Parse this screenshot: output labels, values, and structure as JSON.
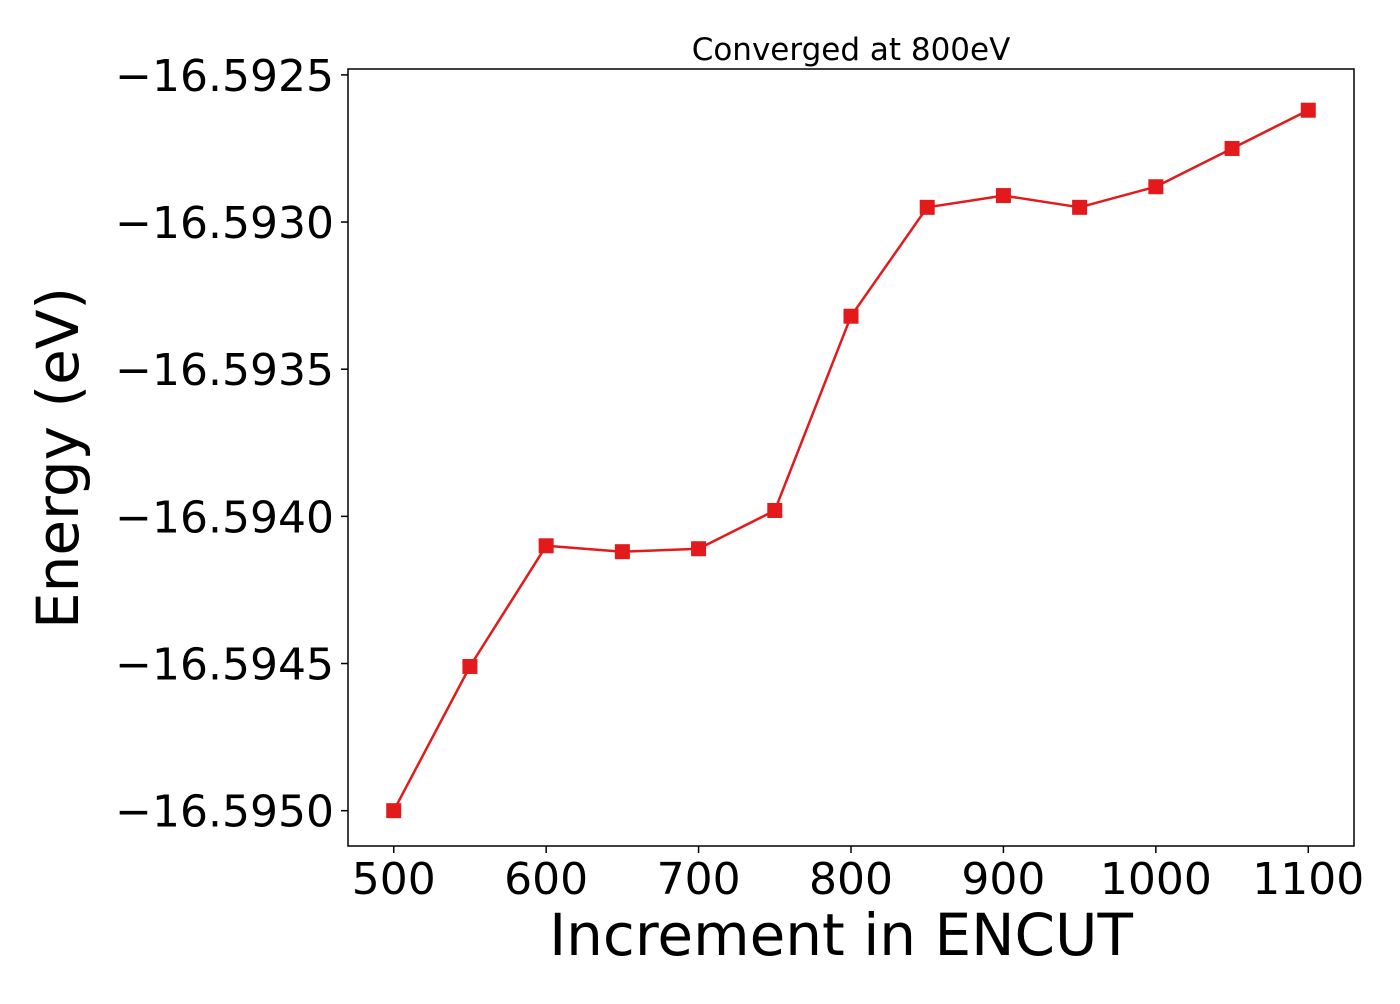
{
  "chart_data": {
    "type": "line",
    "title": "Converged at 800eV",
    "xlabel": "Increment in ENCUT",
    "ylabel": "Energy (eV)",
    "xlim": [
      470,
      1130
    ],
    "ylim": [
      -16.59512,
      -16.59248
    ],
    "x_ticks": [
      500,
      600,
      700,
      800,
      900,
      1000,
      1100
    ],
    "x_tick_labels": [
      "500",
      "600",
      "700",
      "800",
      "900",
      "1000",
      "1100"
    ],
    "y_ticks": [
      -16.595,
      -16.5945,
      -16.594,
      -16.5935,
      -16.593,
      -16.5925
    ],
    "y_tick_labels": [
      "−16.5950",
      "−16.5945",
      "−16.5940",
      "−16.5935",
      "−16.5930",
      "−16.5925"
    ],
    "grid": false,
    "series": [
      {
        "color": "#e31a1c",
        "marker": "square",
        "x": [
          500,
          550,
          600,
          650,
          700,
          750,
          800,
          850,
          900,
          950,
          1000,
          1050,
          1100
        ],
        "y": [
          -16.595,
          -16.59451,
          -16.5941,
          -16.59412,
          -16.59411,
          -16.59398,
          -16.59332,
          -16.59295,
          -16.59291,
          -16.59295,
          -16.59288,
          -16.59275,
          -16.59262
        ]
      }
    ]
  }
}
